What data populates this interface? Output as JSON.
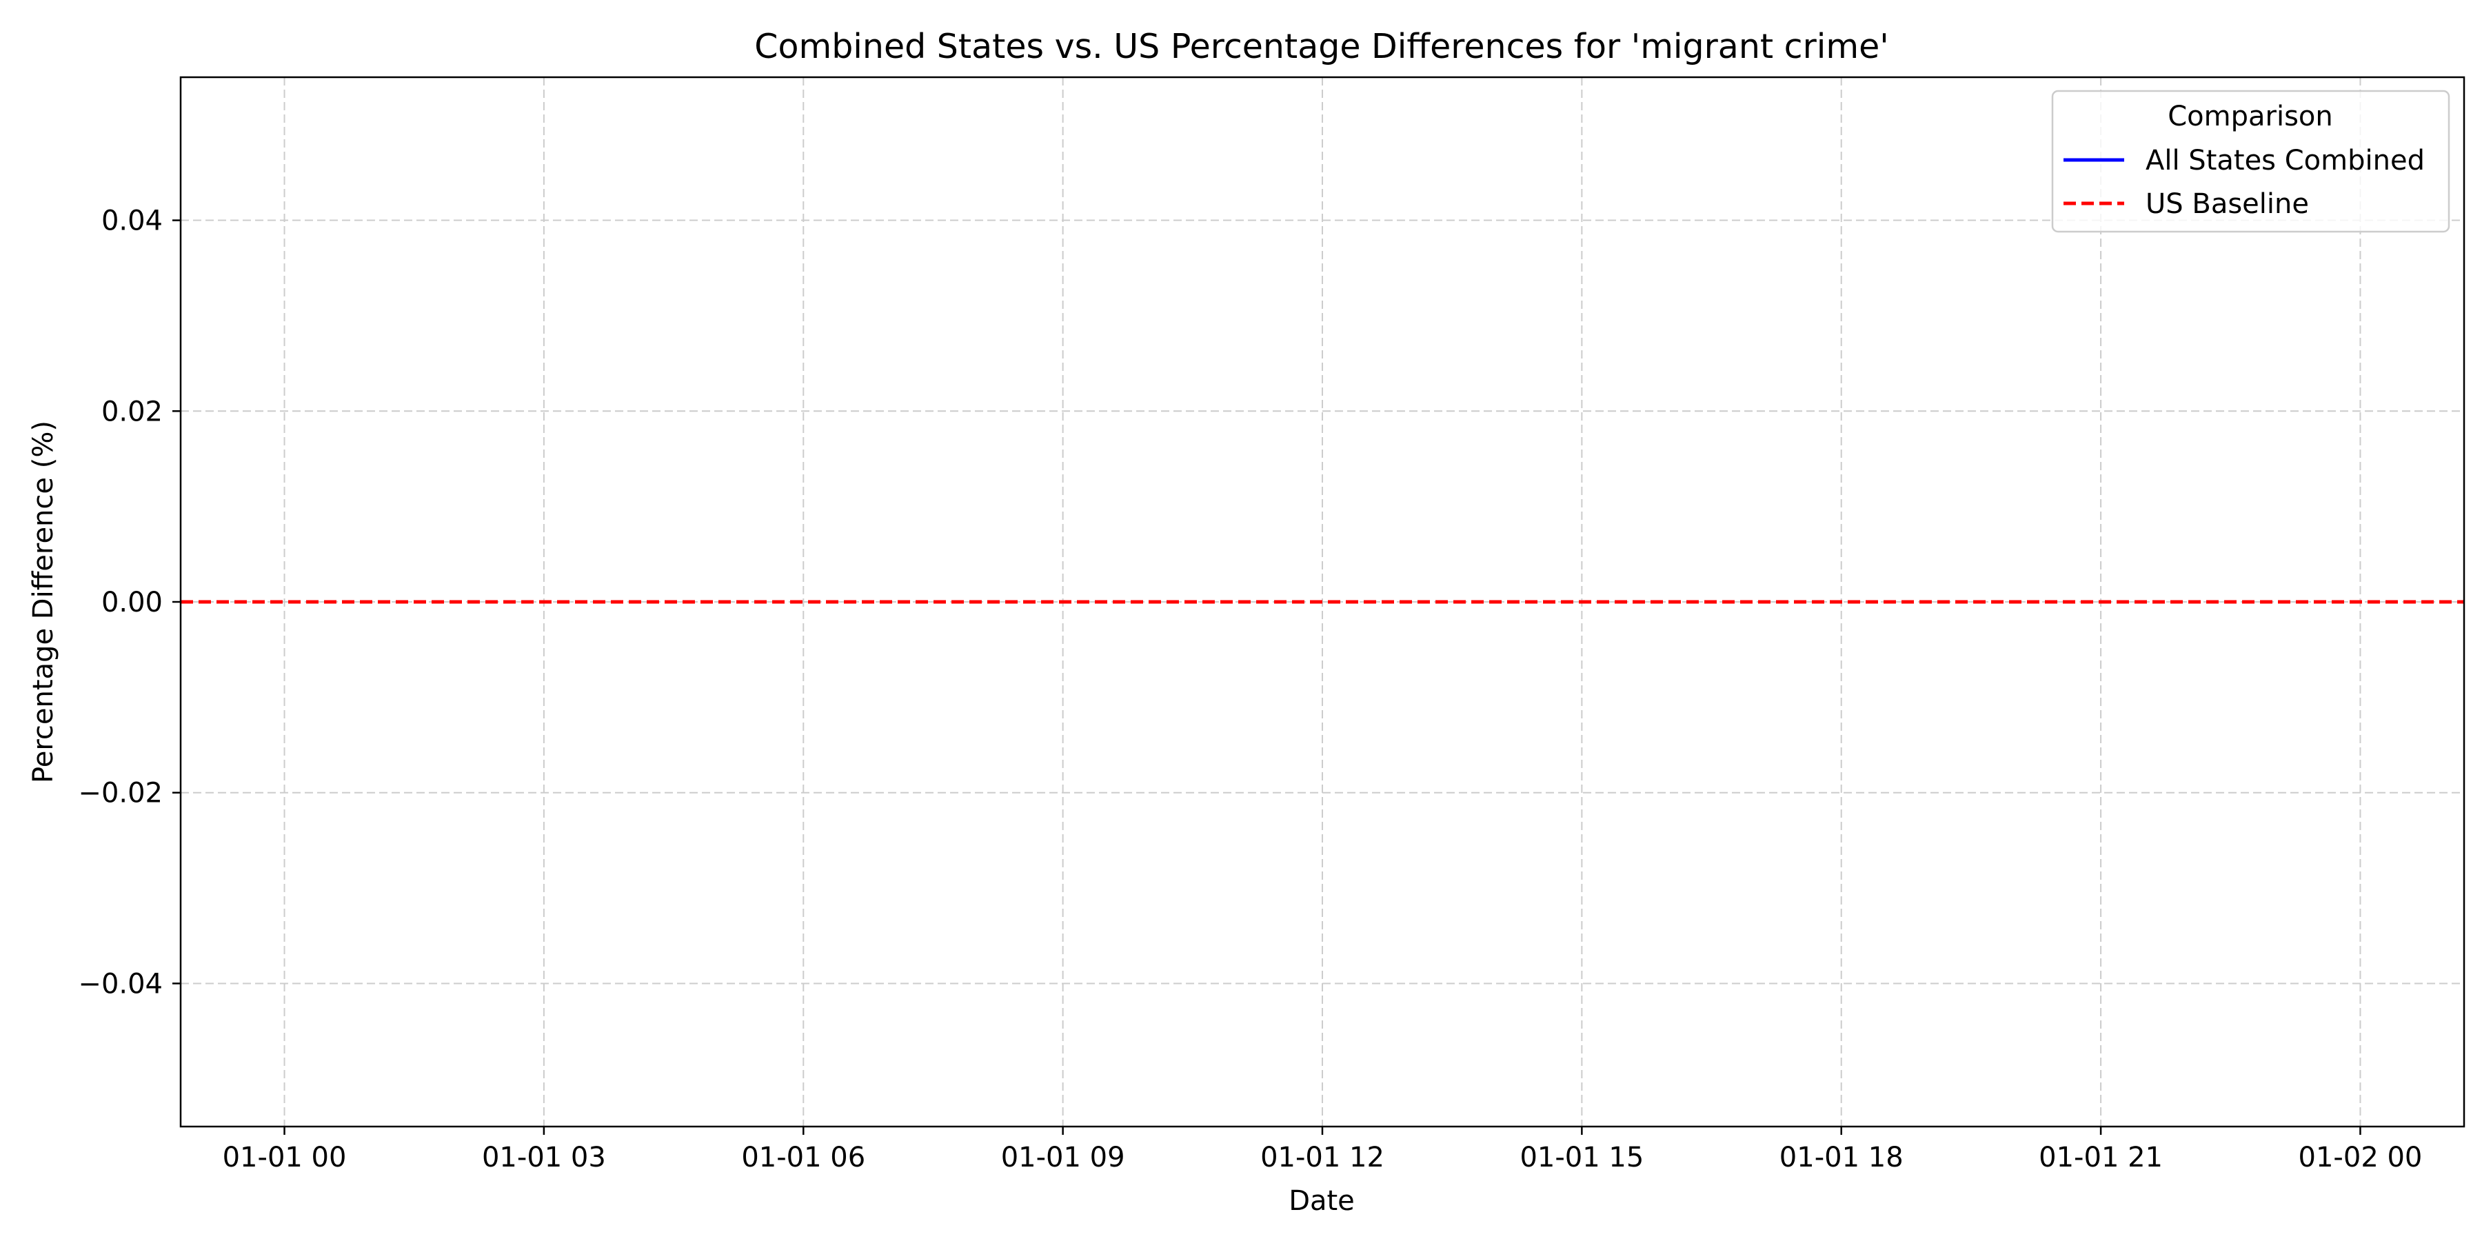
{
  "chart_data": {
    "type": "line",
    "title": "Combined States vs. US Percentage Differences for 'migrant crime'",
    "xlabel": "Date",
    "ylabel": "Percentage Difference (%)",
    "x_ticks": [
      "01-01 00",
      "01-01 03",
      "01-01 06",
      "01-01 09",
      "01-01 12",
      "01-01 15",
      "01-01 18",
      "01-01 21",
      "01-02 00"
    ],
    "x_tick_hours": [
      0,
      3,
      6,
      9,
      12,
      15,
      18,
      21,
      24
    ],
    "xlim_hours": [
      -1.2,
      25.2
    ],
    "y_ticks": [
      0.04,
      0.02,
      0.0,
      -0.02,
      -0.04
    ],
    "y_tick_labels": [
      "0.04",
      "0.02",
      "0.00",
      "−0.02",
      "−0.04"
    ],
    "ylim": [
      -0.055,
      0.055
    ],
    "grid": true,
    "legend": {
      "title": "Comparison",
      "placement": "top-right"
    },
    "series": [
      {
        "name": "All States Combined",
        "style": "solid",
        "color": "#0000ff",
        "x": [],
        "y": []
      },
      {
        "name": "US Baseline",
        "style": "dashed",
        "color": "#ff0000",
        "type": "hline",
        "y": 0.0
      }
    ]
  }
}
